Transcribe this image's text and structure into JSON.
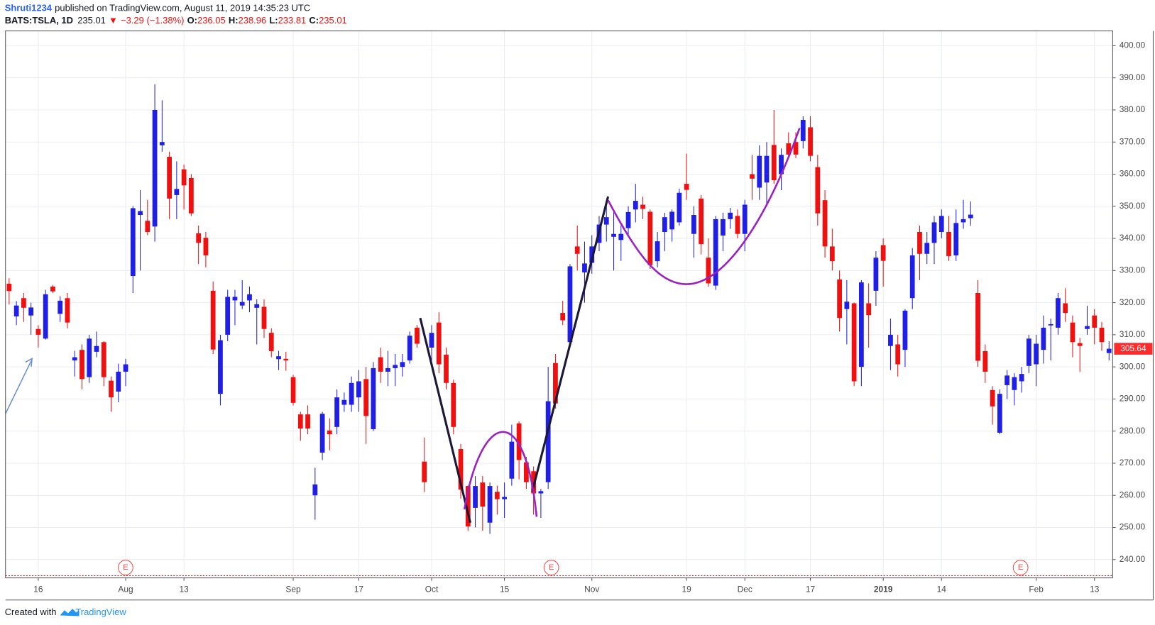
{
  "header": {
    "author": "Shruti1234",
    "published": "published on TradingView.com, August 11, 2019 14:35:23 UTC",
    "symbol": "BATS:TSLA, 1D",
    "last": "235.01",
    "arrow": "▼",
    "change": "−3.29 (−1.38%)",
    "open_label": "O:",
    "open": "236.05",
    "high_label": "H:",
    "high": "238.96",
    "low_label": "L:",
    "low": "233.81",
    "close_label": "C:",
    "close": "235.01"
  },
  "footer": {
    "created": "Created with",
    "brand": "TradingView"
  },
  "earnings_markers": [
    "E",
    "E",
    "E"
  ],
  "chart_data": {
    "type": "candlestick",
    "up_color": "#1f1fe8",
    "down_color": "#f01010",
    "price_label_color": "#ff2a2a",
    "grid": true,
    "ylim": [
      234.3,
      404.6
    ],
    "yticks": [
      {
        "value": 240,
        "label": "240.00"
      },
      {
        "value": 250,
        "label": "250.00"
      },
      {
        "value": 260,
        "label": "260.00"
      },
      {
        "value": 270,
        "label": "270.00"
      },
      {
        "value": 280,
        "label": "280.00"
      },
      {
        "value": 290,
        "label": "290.00"
      },
      {
        "value": 300,
        "label": "300.00"
      },
      {
        "value": 310,
        "label": "310.00"
      },
      {
        "value": 320,
        "label": "320.00"
      },
      {
        "value": 330,
        "label": "330.00"
      },
      {
        "value": 340,
        "label": "340.00"
      },
      {
        "value": 350,
        "label": "350.00"
      },
      {
        "value": 360,
        "label": "360.00"
      },
      {
        "value": 370,
        "label": "370.00"
      },
      {
        "value": 380,
        "label": "380.00"
      },
      {
        "value": 390,
        "label": "390.00"
      },
      {
        "value": 400,
        "label": "400.00"
      }
    ],
    "categories": [
      null,
      null,
      null,
      null,
      "16",
      null,
      null,
      null,
      null,
      null,
      null,
      null,
      null,
      null,
      null,
      null,
      "Aug",
      null,
      null,
      null,
      null,
      null,
      null,
      null,
      "13",
      null,
      null,
      null,
      null,
      null,
      null,
      null,
      null,
      null,
      null,
      null,
      null,
      null,
      null,
      "Sep",
      null,
      null,
      null,
      null,
      null,
      null,
      null,
      null,
      "17",
      null,
      null,
      null,
      null,
      null,
      null,
      null,
      null,
      null,
      "Oct",
      null,
      null,
      null,
      null,
      null,
      null,
      null,
      null,
      null,
      "15",
      null,
      null,
      null,
      null,
      null,
      null,
      null,
      null,
      null,
      null,
      null,
      "Nov",
      null,
      null,
      null,
      null,
      null,
      null,
      null,
      null,
      null,
      null,
      null,
      null,
      "19",
      null,
      null,
      null,
      null,
      null,
      null,
      null,
      "Dec",
      null,
      null,
      null,
      null,
      null,
      null,
      null,
      null,
      "17",
      null,
      null,
      null,
      null,
      null,
      null,
      null,
      null,
      null,
      "2019",
      null,
      null,
      null,
      null,
      null,
      null,
      null,
      "14",
      null,
      null,
      null,
      null,
      null,
      null,
      null,
      null,
      null,
      null,
      null,
      null,
      "Feb",
      null,
      null,
      null,
      null,
      null,
      null,
      null,
      "13",
      null,
      null
    ],
    "open": [
      325.9,
      315.7,
      321.4,
      316,
      311.8,
      308.8,
      325,
      316.5,
      321.4,
      302,
      305.3,
      296.8,
      304.7,
      307.7,
      295.7,
      292.3,
      298.5,
      328.3,
      347.3,
      345.5,
      343.7,
      369,
      365.4,
      353.5,
      361.5,
      358.8,
      341.6,
      340.2,
      323.7,
      291.6,
      310,
      320.7,
      319.1,
      320.7,
      318.4,
      318.7,
      310.6,
      302.4,
      302.5,
      296.8,
      285.2,
      285.2,
      260,
      273.3,
      280.2,
      281.3,
      288.2,
      288.2,
      290.5,
      296.2,
      280.6,
      303,
      298.5,
      299.6,
      300,
      302,
      312.2,
      270.5,
      306,
      313.8,
      303.8,
      295,
      274.4,
      262.9,
      256.1,
      264,
      251.5,
      261.1,
      258.8,
      265.2,
      282.4,
      270.3,
      267.5,
      260.6,
      264.1,
      301.2,
      316.8,
      307.7,
      337.5,
      329.4,
      332.4,
      338.6,
      344.3,
      340.5,
      339.5,
      343.2,
      349,
      350.5,
      348.3,
      332.9,
      342,
      342.8,
      345,
      357,
      341.4,
      352.4,
      334,
      325.3,
      340.9,
      346,
      347,
      341.4,
      360,
      355.8,
      357.4,
      369.1,
      360,
      369.6,
      370,
      370.3,
      374.6,
      362.2,
      351.9,
      337.5,
      327.2,
      318,
      319.8,
      300,
      319.8,
      323.7,
      337.9,
      306.5,
      307,
      305.3,
      321.4,
      342,
      335.2,
      338.6,
      342,
      342,
      334.7,
      345,
      346.3,
      323,
      304.9,
      292.8,
      279.5,
      294.3,
      292.8,
      295.5,
      300.3,
      300.8,
      305.3,
      312.9,
      312.2,
      319.8,
      313.8,
      307.4,
      311.8,
      316,
      312.2,
      304.3
    ],
    "high": [
      327.6,
      320.5,
      323,
      320,
      313,
      324,
      325.5,
      322,
      323,
      305,
      307,
      310,
      311,
      308,
      297,
      301,
      302.5,
      350,
      355,
      352,
      388,
      383,
      367,
      364,
      363,
      360,
      344,
      342,
      326.6,
      310,
      324,
      324,
      327,
      325,
      321,
      321,
      312,
      305,
      304.7,
      297.5,
      286,
      288,
      268.6,
      286,
      284,
      293,
      292,
      297,
      299,
      300,
      301.5,
      306,
      305,
      304,
      304,
      311,
      313,
      278,
      313,
      317,
      306,
      296,
      276,
      263,
      266,
      266,
      264,
      263,
      264,
      282,
      283,
      272,
      269,
      262,
      300,
      304,
      320.6,
      332,
      344,
      339,
      341,
      347,
      350,
      349,
      344,
      350,
      357,
      353,
      349,
      342,
      348,
      349,
      355.5,
      366.4,
      350,
      353.5,
      340,
      347,
      348,
      349.5,
      349,
      352,
      366,
      369,
      370,
      380,
      368,
      373,
      373,
      378,
      378,
      366,
      355,
      343,
      330,
      327,
      320,
      327,
      326,
      336,
      340,
      315,
      310,
      318,
      337,
      344,
      342,
      347,
      349,
      347,
      349,
      352,
      351.5,
      327,
      307,
      294,
      293,
      299,
      298,
      300,
      310,
      310,
      316,
      315,
      323,
      324.5,
      316,
      309,
      319,
      318,
      314,
      308
    ],
    "low": [
      319.4,
      313,
      314,
      310,
      306,
      308.5,
      323,
      314,
      312,
      297,
      293,
      295,
      303,
      294,
      286,
      289,
      294,
      323,
      330,
      341,
      339,
      367,
      346,
      346,
      349,
      347,
      332,
      331,
      304,
      288,
      308,
      313,
      318,
      317,
      307,
      309,
      303,
      299,
      298.8,
      288,
      277,
      279,
      252.4,
      271,
      274,
      279,
      286,
      286,
      286,
      276,
      280,
      295,
      294,
      294,
      297,
      301,
      306,
      261,
      302,
      298,
      293,
      279,
      259,
      249,
      250,
      249,
      248,
      254,
      253,
      263,
      265,
      262,
      254,
      253,
      262,
      287,
      313,
      306,
      330,
      320,
      329,
      336,
      339,
      330,
      333,
      341,
      345,
      346,
      330.5,
      331,
      336,
      339,
      344,
      352,
      334,
      335,
      325,
      324,
      336,
      343,
      340,
      336,
      352,
      352,
      350,
      357,
      355,
      365,
      365,
      368,
      364,
      344,
      334,
      330,
      311,
      307,
      294,
      294,
      306,
      319,
      325,
      299,
      297,
      300,
      318,
      327,
      332,
      332,
      340,
      333,
      333,
      343,
      344,
      300,
      295,
      282,
      279,
      290,
      288,
      292,
      298,
      294,
      301,
      302,
      310,
      314,
      303,
      298.5,
      310,
      307,
      305,
      302
    ],
    "close": [
      323.6,
      319.1,
      318.4,
      318.5,
      310,
      322.6,
      323.5,
      320.6,
      313.8,
      303,
      296.2,
      308.8,
      306.5,
      296.8,
      290.5,
      298.5,
      300.8,
      349.4,
      348.5,
      342,
      380,
      370,
      352.4,
      355.4,
      356.5,
      347.8,
      338.6,
      334.7,
      305.4,
      308.3,
      321.8,
      321.8,
      320.2,
      322.6,
      319.5,
      311.8,
      304.9,
      303.3,
      302,
      288.8,
      280.8,
      280.8,
      263.4,
      285.4,
      279,
      290.5,
      289.7,
      295,
      295.5,
      284.7,
      299.6,
      298.5,
      299.6,
      300.6,
      301.5,
      309.7,
      307.2,
      264.1,
      310.6,
      300.8,
      295,
      281.3,
      261.8,
      250.3,
      262.9,
      256.5,
      262.9,
      258.8,
      259.5,
      276.7,
      271,
      264.1,
      260.6,
      261.3,
      289.3,
      288.6,
      314.5,
      331.3,
      335.2,
      332.2,
      337.5,
      344.3,
      346.6,
      341.4,
      341.4,
      348.2,
      351.7,
      349.2,
      331.7,
      339.1,
      346.6,
      348.3,
      354.2,
      355.1,
      347.3,
      338.2,
      326,
      346,
      346,
      348,
      341.4,
      350.5,
      358.6,
      365.7,
      365.7,
      358.1,
      366,
      366.1,
      366.1,
      376.9,
      365.7,
      347.8,
      337.5,
      332.9,
      315.2,
      320.3,
      295.5,
      326.3,
      316.1,
      334,
      333,
      310,
      300.8,
      317.5,
      334.7,
      335.2,
      338.6,
      345,
      347,
      334.5,
      344.8,
      346,
      347.4,
      301.9,
      298.5,
      287.7,
      291.6,
      297.3,
      296.8,
      297.8,
      308.8,
      307.2,
      312.2,
      313.3,
      321.4,
      316.8,
      307.7,
      306.5,
      312.7,
      312.2,
      307.7,
      305.64
    ]
  }
}
